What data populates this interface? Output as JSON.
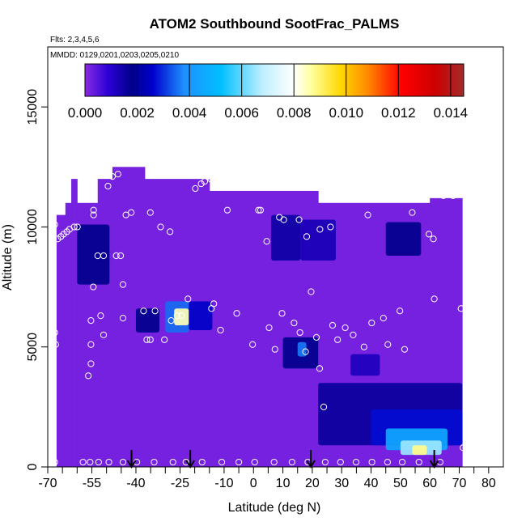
{
  "chart_data": {
    "type": "heatmap",
    "title": "ATOM2 Southbound SootFrac_PALMS",
    "subtitle_flights": "Flts: 2,3,4,5,6",
    "subtitle_dates": "MMDD: 0129,0201,0203,0205,0210",
    "xlabel": "Latitude (deg N)",
    "ylabel": "Altitude (m)",
    "xlim": [
      -70,
      85
    ],
    "ylim": [
      0,
      17500
    ],
    "x_ticks": [
      -70,
      -55,
      -40,
      -25,
      -10,
      0,
      10,
      20,
      30,
      40,
      50,
      60,
      70,
      80
    ],
    "x_tick_labels": [
      "-70",
      "-55",
      "-40",
      "-25",
      "-10",
      "0",
      "10",
      "20",
      "30",
      "40",
      "50",
      "60",
      "70",
      "80"
    ],
    "x_minor_ticks": [
      -65,
      -60,
      -50,
      -45,
      -35,
      -30,
      -20,
      -15,
      -5,
      5,
      15,
      25,
      35,
      45,
      55,
      65,
      75
    ],
    "y_ticks": [
      0,
      5000,
      10000,
      15000
    ],
    "y_tick_labels": [
      "0",
      "5000",
      "10000",
      "15000"
    ],
    "colorbar": {
      "min": 0.0,
      "max": 0.0145,
      "ticks": [
        0.0,
        0.002,
        0.004,
        0.006,
        0.008,
        0.01,
        0.012,
        0.014
      ],
      "tick_labels": [
        "0.000",
        "0.002",
        "0.004",
        "0.006",
        "0.008",
        "0.010",
        "0.012",
        "0.014"
      ],
      "stops": [
        {
          "v": 0.0,
          "color": "#8a2be2"
        },
        {
          "v": 0.0009,
          "color": "#2b00d6"
        },
        {
          "v": 0.0018,
          "color": "#00008b"
        },
        {
          "v": 0.0026,
          "color": "#0000cd"
        },
        {
          "v": 0.0038,
          "color": "#1e90ff"
        },
        {
          "v": 0.0052,
          "color": "#00bfff"
        },
        {
          "v": 0.0068,
          "color": "#bfefff"
        },
        {
          "v": 0.008,
          "color": "#ffffff"
        },
        {
          "v": 0.0087,
          "color": "#ffff99"
        },
        {
          "v": 0.0098,
          "color": "#ffd700"
        },
        {
          "v": 0.0108,
          "color": "#ff8c00"
        },
        {
          "v": 0.0121,
          "color": "#ff0000"
        },
        {
          "v": 0.0134,
          "color": "#cd0000"
        },
        {
          "v": 0.0145,
          "color": "#a52a2a"
        }
      ]
    },
    "background_value": 0.0002,
    "domain_columns": [
      {
        "lat": [
          -67,
          -64
        ],
        "alt": [
          0,
          10500
        ]
      },
      {
        "lat": [
          -64,
          -62
        ],
        "alt": [
          0,
          11000
        ]
      },
      {
        "lat": [
          -62,
          -60
        ],
        "alt": [
          0,
          12000
        ]
      },
      {
        "lat": [
          -60,
          -53
        ],
        "alt": [
          0,
          11000
        ]
      },
      {
        "lat": [
          -53,
          -48
        ],
        "alt": [
          0,
          12000
        ]
      },
      {
        "lat": [
          -48,
          -37
        ],
        "alt": [
          0,
          12500
        ]
      },
      {
        "lat": [
          -37,
          -15
        ],
        "alt": [
          0,
          12000
        ]
      },
      {
        "lat": [
          -15,
          0
        ],
        "alt": [
          0,
          11500
        ]
      },
      {
        "lat": [
          0,
          22
        ],
        "alt": [
          0,
          11500
        ]
      },
      {
        "lat": [
          22,
          60
        ],
        "alt": [
          0,
          11000
        ]
      },
      {
        "lat": [
          60,
          71
        ],
        "alt": [
          0,
          11200
        ]
      }
    ],
    "features": [
      {
        "lat": [
          -60,
          -49
        ],
        "alt": [
          7600,
          10100
        ],
        "value": 0.0018
      },
      {
        "lat": [
          -40,
          -32
        ],
        "alt": [
          5600,
          6600
        ],
        "value": 0.0018
      },
      {
        "lat": [
          -30,
          -22
        ],
        "alt": [
          5600,
          6900
        ],
        "value": 0.0035
      },
      {
        "lat": [
          -27,
          -22
        ],
        "alt": [
          5900,
          6600
        ],
        "value": 0.0085
      },
      {
        "lat": [
          -22,
          -14
        ],
        "alt": [
          5700,
          6900
        ],
        "value": 0.0025
      },
      {
        "lat": [
          6,
          16
        ],
        "alt": [
          8600,
          10500
        ],
        "value": 0.0015
      },
      {
        "lat": [
          16,
          28
        ],
        "alt": [
          8600,
          10300
        ],
        "value": 0.0013
      },
      {
        "lat": [
          45,
          57
        ],
        "alt": [
          8800,
          10200
        ],
        "value": 0.0018
      },
      {
        "lat": [
          10,
          22
        ],
        "alt": [
          4100,
          5400
        ],
        "value": 0.0018
      },
      {
        "lat": [
          15,
          18
        ],
        "alt": [
          4600,
          5200
        ],
        "value": 0.0036
      },
      {
        "lat": [
          33,
          43
        ],
        "alt": [
          3800,
          4700
        ],
        "value": 0.0012
      },
      {
        "lat": [
          22,
          71
        ],
        "alt": [
          900,
          3500
        ],
        "value": 0.0016
      },
      {
        "lat": [
          40,
          71
        ],
        "alt": [
          900,
          2400
        ],
        "value": 0.0027
      },
      {
        "lat": [
          45,
          66
        ],
        "alt": [
          700,
          1600
        ],
        "value": 0.0045
      },
      {
        "lat": [
          50,
          64
        ],
        "alt": [
          500,
          1100
        ],
        "value": 0.0065
      },
      {
        "lat": [
          54,
          59
        ],
        "alt": [
          500,
          900
        ],
        "value": 0.0088
      }
    ],
    "sample_points": [
      [
        -67.6,
        5600
      ],
      [
        -67.3,
        5100
      ],
      [
        -67.6,
        10100
      ],
      [
        -66.6,
        9500
      ],
      [
        -65.5,
        9600
      ],
      [
        -64.6,
        9700
      ],
      [
        -63.5,
        9800
      ],
      [
        -62.6,
        9900
      ],
      [
        -61.0,
        10000
      ],
      [
        -59.9,
        10000
      ],
      [
        -56.2,
        3800
      ],
      [
        -55.3,
        4300
      ],
      [
        -55.3,
        5100
      ],
      [
        -55.3,
        6100
      ],
      [
        -54.5,
        7500
      ],
      [
        -54.4,
        10500
      ],
      [
        -54.4,
        10700
      ],
      [
        -53.0,
        8800
      ],
      [
        -52.0,
        6300
      ],
      [
        -51.0,
        5500
      ],
      [
        -51.0,
        8800
      ],
      [
        -49.5,
        11700
      ],
      [
        -48.0,
        12100
      ],
      [
        -46.7,
        8800
      ],
      [
        -46.1,
        12200
      ],
      [
        -45.2,
        8800
      ],
      [
        -44.4,
        7600
      ],
      [
        -44.4,
        6200
      ],
      [
        -43.4,
        10500
      ],
      [
        -41.6,
        10600
      ],
      [
        -37.4,
        6500
      ],
      [
        -36.3,
        5300
      ],
      [
        -35.1,
        5300
      ],
      [
        -35.1,
        10600
      ],
      [
        -33.5,
        6500
      ],
      [
        -31.6,
        10000
      ],
      [
        -30.3,
        5300
      ],
      [
        -28.4,
        9800
      ],
      [
        -28.0,
        6100
      ],
      [
        -26.0,
        6300
      ],
      [
        -24.5,
        6300
      ],
      [
        -22.3,
        7000
      ],
      [
        -19.8,
        11600
      ],
      [
        -17.8,
        11800
      ],
      [
        -16.6,
        11900
      ],
      [
        -15.6,
        12100
      ],
      [
        -14.6,
        12000
      ],
      [
        -14.3,
        6600
      ],
      [
        -13.5,
        6800
      ],
      [
        -11.2,
        5700
      ],
      [
        -8.9,
        10700
      ],
      [
        -5.7,
        6400
      ],
      [
        -0.3,
        5100
      ],
      [
        1.7,
        10700
      ],
      [
        2.4,
        10700
      ],
      [
        4.5,
        9400
      ],
      [
        5.3,
        5800
      ],
      [
        7.3,
        4900
      ],
      [
        8.8,
        10400
      ],
      [
        9.7,
        6400
      ],
      [
        10.3,
        10300
      ],
      [
        13.8,
        6000
      ],
      [
        15.5,
        10300
      ],
      [
        15.8,
        5600
      ],
      [
        17.7,
        4800
      ],
      [
        18.1,
        9600
      ],
      [
        19.6,
        7300
      ],
      [
        21.4,
        5400
      ],
      [
        22.5,
        4100
      ],
      [
        22.6,
        9900
      ],
      [
        23.9,
        2500
      ],
      [
        26.2,
        10000
      ],
      [
        26.9,
        5900
      ],
      [
        28.6,
        5300
      ],
      [
        31.2,
        5800
      ],
      [
        33.9,
        5500
      ],
      [
        37.6,
        5000
      ],
      [
        38.9,
        10500
      ],
      [
        40.2,
        6000
      ],
      [
        44.2,
        6200
      ],
      [
        45.7,
        5100
      ],
      [
        49.8,
        6500
      ],
      [
        51.4,
        4900
      ],
      [
        54.0,
        10600
      ],
      [
        59.7,
        9700
      ],
      [
        61.2,
        9500
      ],
      [
        61.5,
        7000
      ],
      [
        64.6,
        11300
      ],
      [
        67.9,
        11300
      ],
      [
        71.3,
        800
      ],
      [
        70.6,
        6600
      ],
      [
        -67.6,
        200
      ],
      [
        -58.0,
        200
      ],
      [
        -55.6,
        200
      ],
      [
        -52.7,
        200
      ],
      [
        -49.2,
        200
      ],
      [
        -44.4,
        200
      ],
      [
        -39.7,
        200
      ],
      [
        -33.8,
        200
      ],
      [
        -27.4,
        200
      ],
      [
        -23.0,
        200
      ],
      [
        -17.5,
        200
      ],
      [
        -10.8,
        200
      ],
      [
        -5.0,
        200
      ],
      [
        0.4,
        200
      ],
      [
        7.0,
        200
      ],
      [
        13.1,
        200
      ],
      [
        18.5,
        200
      ],
      [
        24.4,
        200
      ],
      [
        29.6,
        200
      ],
      [
        34.9,
        200
      ],
      [
        40.3,
        200
      ],
      [
        45.6,
        200
      ],
      [
        50.6,
        200
      ],
      [
        56.3,
        200
      ],
      [
        63.5,
        200
      ]
    ],
    "arrows_lat": [
      -41.5,
      -21.5,
      19.5,
      61.5
    ],
    "point_color": "#ffffff",
    "arrow_color": "#000000"
  }
}
